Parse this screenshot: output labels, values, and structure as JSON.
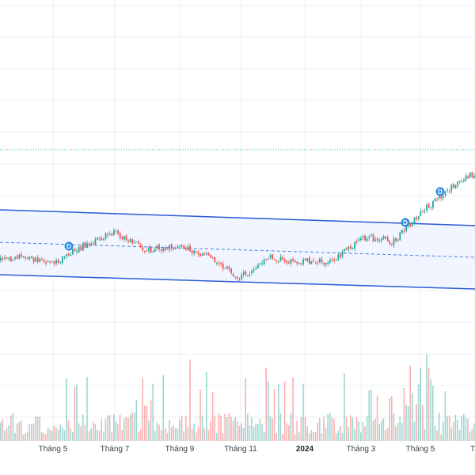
{
  "colors": {
    "up": "#26a69a",
    "down": "#ef5350",
    "channel": "#2a5bd7",
    "channel_fill": "#eef3ff",
    "target_line": "#26a69a",
    "grid": "#eceff3",
    "dividend_badge": "#2f8fe0"
  },
  "x_axis": {
    "labels": [
      "Tháng 5",
      "Tháng 7",
      "Tháng 9",
      "Tháng 11",
      "2024",
      "Tháng 3",
      "Tháng 5",
      "T"
    ]
  },
  "dividend_marker": {
    "label": "D",
    "count": 3
  },
  "chart_data": {
    "type": "candlestick",
    "x_range": [
      "2023-03",
      "2024-07"
    ],
    "legend": "none",
    "grid": true,
    "price_path": [
      {
        "t": "2023-03",
        "close": 100
      },
      {
        "t": "2023-04",
        "close": 103
      },
      {
        "t": "2023-05",
        "close": 98
      },
      {
        "t": "2023-06",
        "close": 112
      },
      {
        "t": "2023-07",
        "close": 121
      },
      {
        "t": "2023-08",
        "close": 108
      },
      {
        "t": "2023-09",
        "close": 111
      },
      {
        "t": "2023-10",
        "close": 104
      },
      {
        "t": "2023-11",
        "close": 88
      },
      {
        "t": "2023-12",
        "close": 102
      },
      {
        "t": "2024-01",
        "close": 100
      },
      {
        "t": "2024-02",
        "close": 100
      },
      {
        "t": "2024-03",
        "close": 118
      },
      {
        "t": "2024-04",
        "close": 115
      },
      {
        "t": "2024-05",
        "close": 138
      },
      {
        "t": "2024-06",
        "close": 158
      },
      {
        "t": "2024-07",
        "close": 170
      }
    ],
    "volume_profile": "spikes near Tháng 7 and Tháng 5 (2024)"
  }
}
